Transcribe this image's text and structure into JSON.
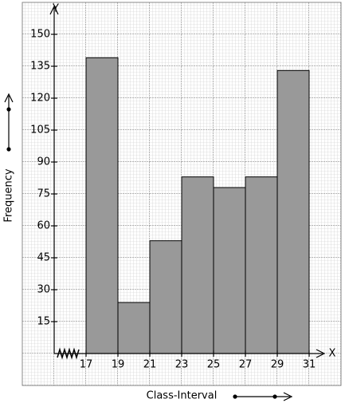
{
  "chart_data": {
    "type": "histogram",
    "x_label": "Class-Interval",
    "y_label": "Frequency",
    "x_axis_letter": "X",
    "y_axis_letter": "Y",
    "bins": [
      17,
      19,
      21,
      23,
      25,
      27,
      29,
      31
    ],
    "values": [
      139,
      24,
      53,
      83,
      78,
      83,
      133
    ],
    "color": "#999999",
    "xlim": [
      15,
      33
    ],
    "ylim": [
      -15,
      165
    ],
    "xticks": [
      17,
      19,
      21,
      23,
      25,
      27,
      29,
      31
    ],
    "yticks": [
      15,
      30,
      45,
      60,
      75,
      90,
      105,
      120,
      135,
      150
    ],
    "grid": true
  }
}
